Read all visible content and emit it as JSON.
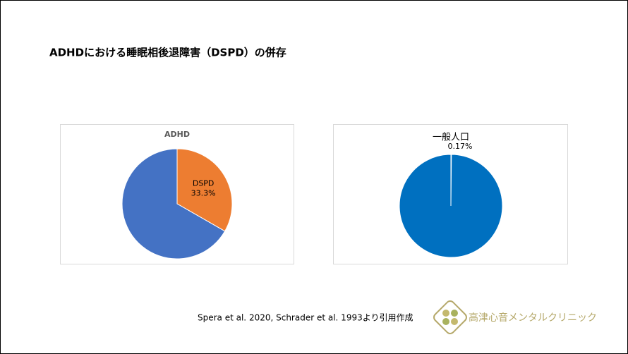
{
  "title": "ADHDにおける睡眠相後退障害（DSPD）の併存",
  "chart_data": [
    {
      "type": "pie",
      "title": "ADHD",
      "categories": [
        "DSPD",
        null
      ],
      "values": [
        33.3,
        66.7
      ],
      "value_labels": [
        "33.3%",
        null
      ],
      "colors": [
        "#ed7d31",
        "#4472c4"
      ]
    },
    {
      "type": "pie",
      "title": "一般人口",
      "categories": [
        null,
        null
      ],
      "values": [
        0.17,
        99.83
      ],
      "value_labels": [
        "0.17%",
        null
      ],
      "colors": [
        "#d9c3a5",
        "#0070c0"
      ]
    }
  ],
  "citation": "Spera et al. 2020, Schrader et al. 1993より引用作成",
  "logo_text": "高津心音メンタルクリニック"
}
